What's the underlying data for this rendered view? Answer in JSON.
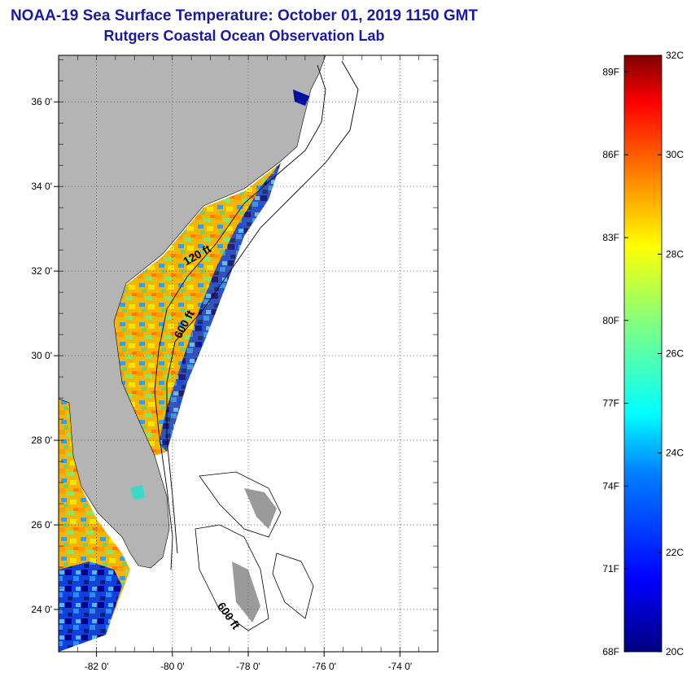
{
  "header": {
    "title": "NOAA-19 Sea Surface Temperature:  October 01, 2019 1150 GMT",
    "subtitle": "Rutgers Coastal Ocean Observation Lab"
  },
  "map": {
    "lat_range": [
      23.0,
      37.1
    ],
    "lon_range": [
      -83.0,
      -73.0
    ],
    "lat_ticks": [
      {
        "value": 36,
        "label": "36 0'"
      },
      {
        "value": 34,
        "label": "34 0'"
      },
      {
        "value": 32,
        "label": "32 0'"
      },
      {
        "value": 30,
        "label": "30 0'"
      },
      {
        "value": 28,
        "label": "28 0'"
      },
      {
        "value": 26,
        "label": "26 0'"
      },
      {
        "value": 24,
        "label": "24 0'"
      }
    ],
    "lon_ticks": [
      {
        "value": -82,
        "label": "-82 0'"
      },
      {
        "value": -80,
        "label": "-80 0'"
      },
      {
        "value": -78,
        "label": "-78 0'"
      },
      {
        "value": -76,
        "label": "-76 0'"
      },
      {
        "value": -74,
        "label": "-74 0'"
      }
    ],
    "contour_labels": [
      {
        "text": "120 ft",
        "lat": 32.3,
        "lon": -79.3,
        "angle": -30
      },
      {
        "text": "600 ft",
        "lat": 30.7,
        "lon": -79.6,
        "angle": -62
      },
      {
        "text": "600 ft",
        "lat": 23.8,
        "lon": -78.6,
        "angle": 55
      }
    ],
    "colors": {
      "land": "#b4b4b4",
      "ocean_nodata": "#ffffff",
      "grid": "#555555",
      "contour": "#000000"
    }
  },
  "colorbar": {
    "min_c": 20,
    "max_c": 32,
    "celsius_ticks": [
      {
        "value": 32,
        "label": "32C"
      },
      {
        "value": 30,
        "label": "30C"
      },
      {
        "value": 28,
        "label": "28C"
      },
      {
        "value": 26,
        "label": "26C"
      },
      {
        "value": 24,
        "label": "24C"
      },
      {
        "value": 22,
        "label": "22C"
      },
      {
        "value": 20,
        "label": "20C"
      }
    ],
    "fahrenheit_ticks": [
      {
        "value": 89,
        "label": "89F"
      },
      {
        "value": 86,
        "label": "86F"
      },
      {
        "value": 83,
        "label": "83F"
      },
      {
        "value": 80,
        "label": "80F"
      },
      {
        "value": 77,
        "label": "77F"
      },
      {
        "value": 74,
        "label": "74F"
      },
      {
        "value": 71,
        "label": "71F"
      },
      {
        "value": 68,
        "label": "68F"
      }
    ],
    "stops": [
      "#000080",
      "#0000ff",
      "#0080ff",
      "#00ffff",
      "#80ff80",
      "#ffff00",
      "#ff8000",
      "#ff0000",
      "#800000"
    ]
  }
}
